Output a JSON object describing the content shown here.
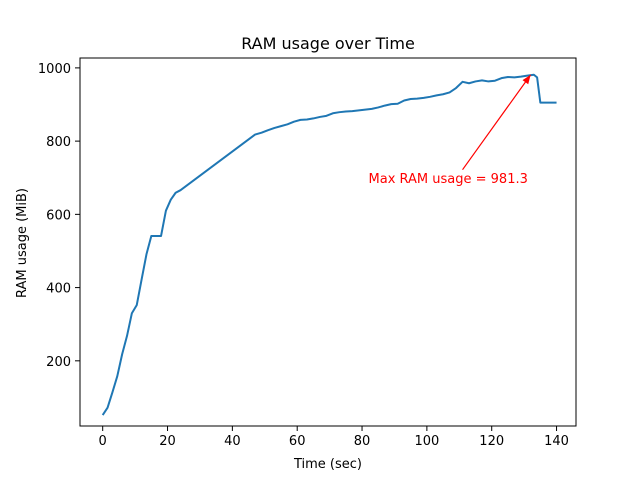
{
  "chart_data": {
    "type": "line",
    "title": "RAM usage over Time",
    "xlabel": "Time (sec)",
    "ylabel": "RAM usage (MiB)",
    "xlim": [
      -7,
      146
    ],
    "ylim": [
      22,
      1027
    ],
    "xticks": [
      0,
      20,
      40,
      60,
      80,
      100,
      120,
      140
    ],
    "yticks": [
      200,
      400,
      600,
      800,
      1000
    ],
    "grid": false,
    "series": [
      {
        "color": "#1f77b4",
        "x": [
          0,
          1.5,
          3,
          4.5,
          6,
          7.5,
          9,
          10.5,
          12,
          13.5,
          15,
          16.5,
          18,
          19.5,
          21,
          22.5,
          24,
          47,
          49,
          51,
          53,
          55,
          57,
          59,
          61,
          63,
          65,
          67,
          69,
          71,
          73,
          75,
          77,
          79,
          81,
          83,
          85,
          87,
          89,
          91,
          93,
          95,
          97,
          99,
          101,
          103,
          105,
          107,
          109,
          111,
          113,
          115,
          117,
          119,
          121,
          123,
          125,
          127,
          129,
          131,
          133,
          134,
          135,
          137,
          140
        ],
        "y": [
          52,
          72,
          114,
          158,
          218,
          268,
          330,
          352,
          422,
          491,
          541,
          541,
          541,
          610,
          640,
          659,
          666,
          818,
          823,
          830,
          836,
          841,
          846,
          853,
          858,
          859,
          862,
          866,
          869,
          876,
          879,
          881,
          882,
          884,
          886,
          888,
          892,
          897,
          901,
          902,
          911,
          915,
          916,
          918,
          921,
          925,
          928,
          933,
          945,
          962,
          958,
          963,
          966,
          963,
          965,
          972,
          975,
          974,
          976,
          979,
          981.3,
          974,
          905,
          905,
          905
        ]
      }
    ],
    "annotation": {
      "text": "Max RAM usage = 981.3",
      "color": "#ff0000",
      "text_at": [
        82,
        685
      ],
      "arrow_from": [
        111,
        722
      ],
      "arrow_to": [
        132,
        981
      ]
    }
  }
}
